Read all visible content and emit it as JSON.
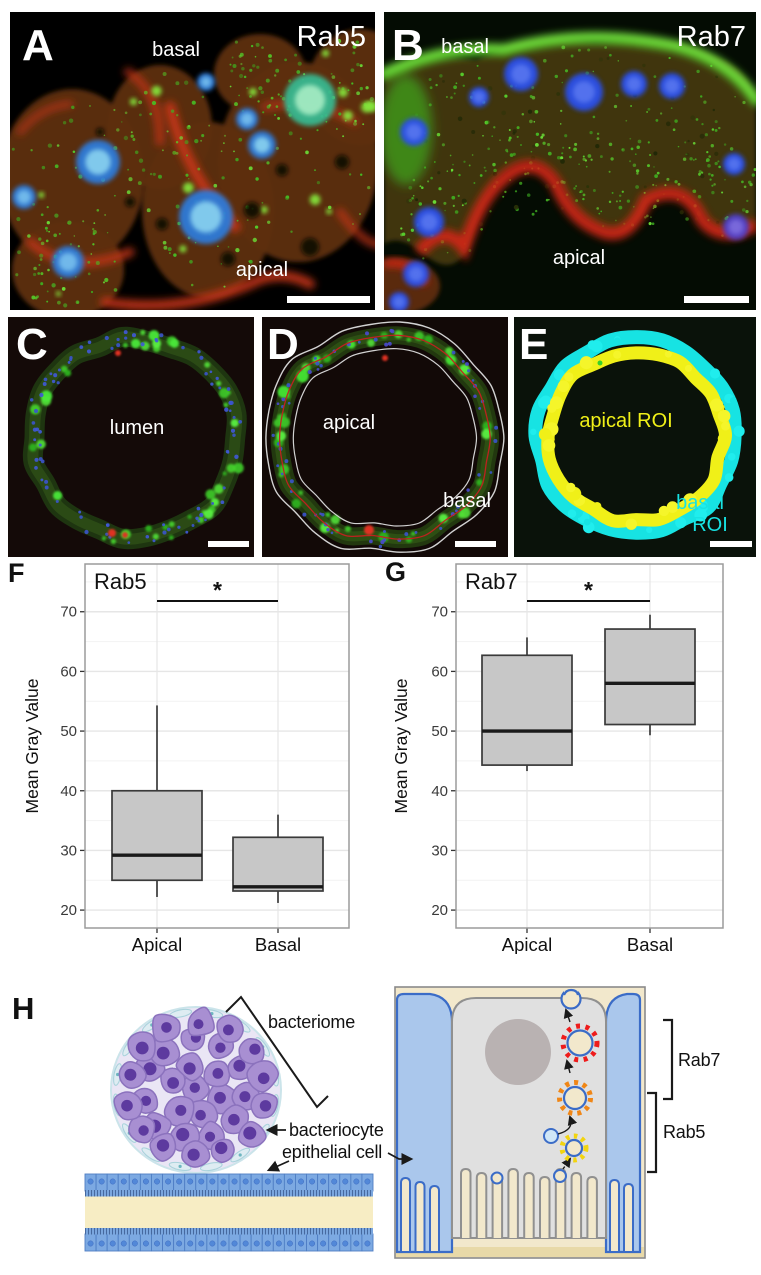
{
  "panels": {
    "a": {
      "letter": "A",
      "marker": "Rab5",
      "label_top": "basal",
      "label_bottom": "apical"
    },
    "b": {
      "letter": "B",
      "marker": "Rab7",
      "label_top": "basal",
      "label_bottom": "apical"
    },
    "c": {
      "letter": "C",
      "label_center": "lumen"
    },
    "d": {
      "letter": "D",
      "label_inner": "apical",
      "label_outer": "basal"
    },
    "e": {
      "letter": "E",
      "label_inner": "apical ROI",
      "label_outer_line1": "basal",
      "label_outer_line2": "ROI"
    },
    "f": {
      "letter": "F"
    },
    "g": {
      "letter": "G"
    },
    "h": {
      "letter": "H",
      "label_bacteriome": "bacteriome",
      "label_bacteriocyte": "bacteriocyte",
      "label_epithelial": "epithelial cell",
      "label_rab7": "Rab7",
      "label_rab5": "Rab5"
    }
  },
  "chart_data": [
    {
      "type": "boxplot",
      "panel": "F",
      "title": "Rab5",
      "ylabel": "Mean Gray Value",
      "categories": [
        "Apical",
        "Basal"
      ],
      "yticks": [
        20,
        30,
        40,
        50,
        60,
        70
      ],
      "ylim": [
        17,
        78
      ],
      "grid": true,
      "series": [
        {
          "category": "Apical",
          "whisker_low": 22.2,
          "q1": 25.0,
          "median": 29.2,
          "q3": 40.0,
          "whisker_high": 54.3
        },
        {
          "category": "Basal",
          "whisker_low": 21.2,
          "q1": 23.2,
          "median": 23.9,
          "q3": 32.2,
          "whisker_high": 36.0
        }
      ],
      "significance": {
        "label": "*",
        "y": 71.8
      }
    },
    {
      "type": "boxplot",
      "panel": "G",
      "title": "Rab7",
      "ylabel": "Mean Gray Value",
      "categories": [
        "Apical",
        "Basal"
      ],
      "yticks": [
        20,
        30,
        40,
        50,
        60,
        70
      ],
      "ylim": [
        17,
        78
      ],
      "grid": true,
      "series": [
        {
          "category": "Apical",
          "whisker_low": 43.3,
          "q1": 44.3,
          "median": 50.0,
          "q3": 62.7,
          "whisker_high": 65.7
        },
        {
          "category": "Basal",
          "whisker_low": 49.3,
          "q1": 51.1,
          "median": 58.0,
          "q3": 67.1,
          "whisker_high": 69.5
        }
      ],
      "significance": {
        "label": "*",
        "y": 71.8
      }
    }
  ],
  "colors": {
    "box_fill": "#c7c7c7",
    "box_stroke": "#3a3a3a",
    "median": "#1a1a1a",
    "grid_major": "#e6e6e6",
    "grid_minor": "#f2f2f2",
    "panel_border": "#9b9b9b",
    "tick_label": "#3a3a3a",
    "axis_text": "#111111",
    "micro_green": "#3ecb2a",
    "micro_red": "#c23014",
    "micro_blue": "#3f6fd8",
    "roi_yellow": "#f0f018",
    "roi_cyan": "#17e3e3",
    "diagram_purple": "#a88fd2",
    "diagram_purple_dark": "#5d3a9f",
    "diagram_blue": "#aac7ec",
    "diagram_blue_dark": "#3b6cc7",
    "diagram_gray": "#e0e0e0",
    "diagram_cream": "#f2e8cc",
    "diagram_tan": "#e8d9a8",
    "endosome_yellow": "#f2d410",
    "endosome_orange": "#f08616",
    "endosome_red": "#ee1c1c"
  }
}
